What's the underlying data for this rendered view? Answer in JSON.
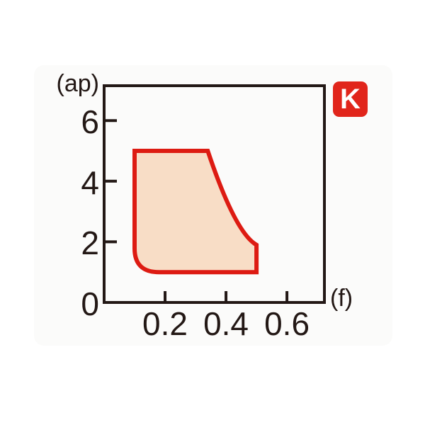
{
  "badge": {
    "label": "K",
    "background": "#e1251b",
    "text_color": "#ffffff"
  },
  "chart_data": {
    "type": "area",
    "xlabel": "(f)",
    "ylabel": "(ap)",
    "xlim": [
      0,
      0.723
    ],
    "ylim": [
      0,
      7.15
    ],
    "grid": false,
    "axis_color": "#231815",
    "x_ticks": [
      {
        "value": 0.2,
        "label": "0.2"
      },
      {
        "value": 0.4,
        "label": "0.4"
      },
      {
        "value": 0.6,
        "label": "0.6"
      }
    ],
    "y_ticks": [
      {
        "value": 0,
        "label": "0"
      },
      {
        "value": 2,
        "label": "2"
      },
      {
        "value": 4,
        "label": "4"
      },
      {
        "value": 6,
        "label": "6"
      }
    ],
    "region": {
      "name": "recommended-cutting-range",
      "fill": "#f8ddc6",
      "stroke": "#dd1b12",
      "stroke_width": 6,
      "path": [
        [
          "M",
          0.1,
          5
        ],
        [
          "L",
          0.34,
          5
        ],
        [
          "Q",
          0.43,
          2.3,
          0.5,
          1.9
        ],
        [
          "L",
          0.5,
          1
        ],
        [
          "L",
          0.18,
          1
        ],
        [
          "Q",
          0.1,
          1,
          0.1,
          1.78
        ],
        [
          "L",
          0.1,
          5
        ],
        [
          "Z"
        ]
      ]
    }
  }
}
